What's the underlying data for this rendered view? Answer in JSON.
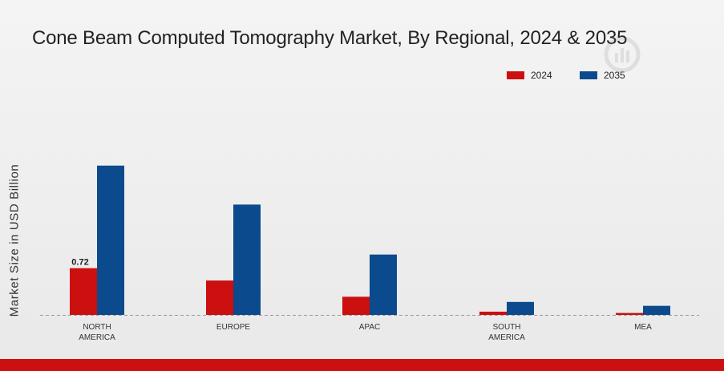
{
  "chart_data": {
    "type": "bar",
    "title": "Cone Beam Computed Tomography Market, By Regional, 2024 & 2035",
    "ylabel": "Market Size in USD Billion",
    "xlabel": "",
    "categories": [
      [
        "NORTH",
        "AMERICA"
      ],
      [
        "EUROPE"
      ],
      [
        "APAC"
      ],
      [
        "SOUTH",
        "AMERICA"
      ],
      [
        "MEA"
      ]
    ],
    "series": [
      {
        "name": "2024",
        "color": "#cc0f0f",
        "values": [
          0.72,
          0.53,
          0.28,
          0.05,
          0.03
        ]
      },
      {
        "name": "2035",
        "color": "#0b4a8c",
        "values": [
          2.3,
          1.7,
          0.93,
          0.2,
          0.14
        ]
      }
    ],
    "data_labels": [
      {
        "series": 0,
        "index": 0,
        "text": "0.72"
      }
    ],
    "ylim": [
      0,
      3.0
    ],
    "grid": false,
    "legend_position": "top-right",
    "baseline": "dashed"
  }
}
